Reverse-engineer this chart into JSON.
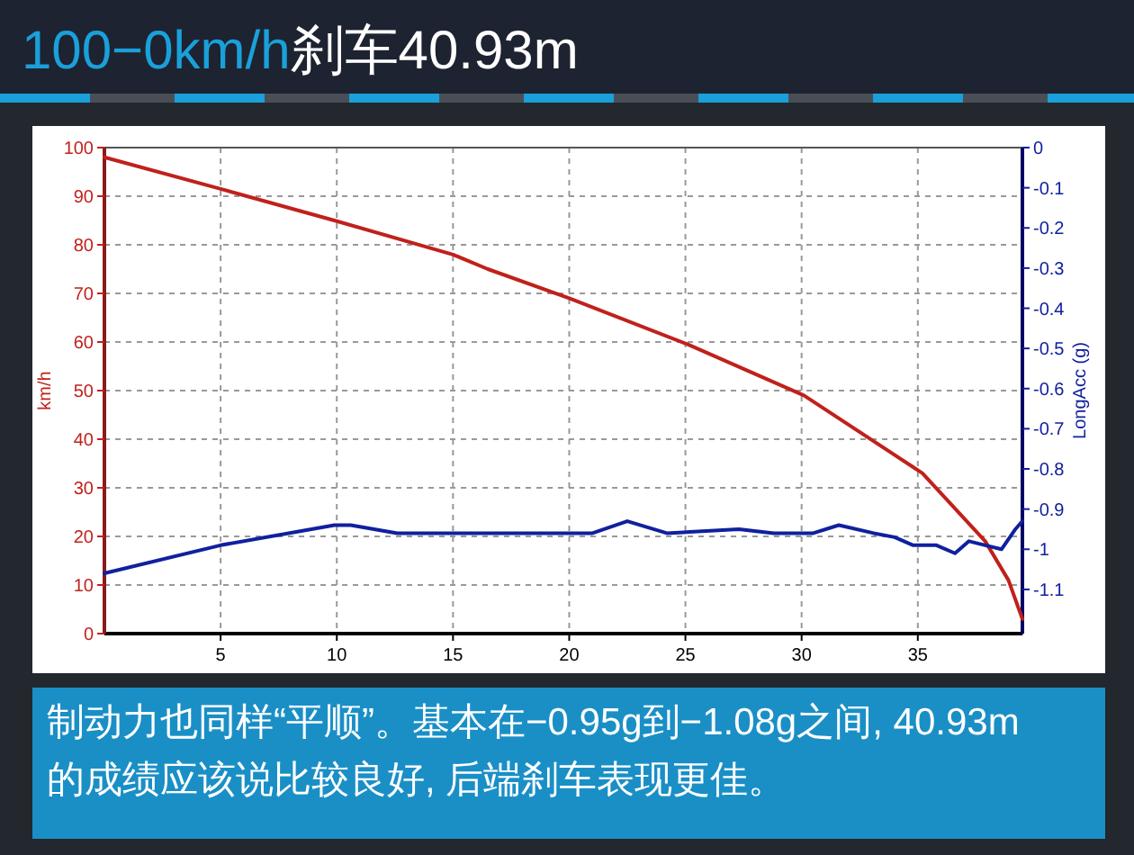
{
  "chart_data": {
    "type": "line",
    "title": "100−0km/h刹车40.93m",
    "ylabel": "km/h",
    "y2label": "LongAcc (g)",
    "annotations": [
      "制动力也同样“平顺”。基本在−0.95g到−1.08g之间, 40.93m的成绩应该说比较良好, 后端刹车表现更佳。"
    ],
    "xlim": [
      0,
      39.5
    ],
    "xticks": [
      5,
      10,
      15,
      20,
      25,
      30,
      35
    ],
    "ylim": [
      0,
      100
    ],
    "yticks": [
      0,
      10,
      20,
      30,
      40,
      50,
      60,
      70,
      80,
      90,
      100
    ],
    "y2lim": [
      -1.21,
      0
    ],
    "y2ticks": [
      0,
      -0.1,
      -0.2,
      -0.3,
      -0.4,
      -0.5,
      -0.6,
      -0.7,
      -0.8,
      -0.9,
      -1,
      -1.1
    ],
    "grid": true,
    "line_style": "solid",
    "marker": "none",
    "series": [
      {
        "color": "#c0211b",
        "x": [
          0,
          5,
          9.9,
          15,
          16.5,
          20,
          25.1,
          30.1,
          35.2,
          37.9,
          38.9,
          39.5
        ],
        "values": [
          98,
          91.5,
          85,
          78,
          75,
          69,
          59.5,
          49,
          33,
          19,
          11,
          3
        ]
      },
      {
        "color": "#10209e",
        "axis": "y2",
        "x": [
          0,
          5,
          9.9,
          10.6,
          12.6,
          18.8,
          21,
          22.5,
          24.2,
          27.3,
          28.8,
          30.5,
          31.6,
          33.1,
          34,
          34.8,
          35.8,
          36.6,
          37.2,
          37.9,
          38.6,
          39.2,
          39.5
        ],
        "values": [
          -1.06,
          -0.99,
          -0.94,
          -0.94,
          -0.96,
          -0.96,
          -0.96,
          -0.93,
          -0.96,
          -0.95,
          -0.96,
          -0.96,
          -0.94,
          -0.96,
          -0.97,
          -0.99,
          -0.99,
          -1.01,
          -0.98,
          -0.99,
          -1.0,
          -0.95,
          -0.93
        ]
      }
    ]
  }
}
